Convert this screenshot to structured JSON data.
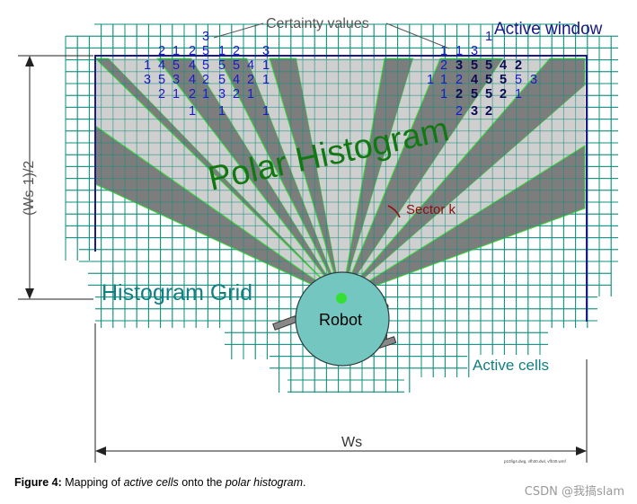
{
  "labels": {
    "certainty_values": "Certainty values",
    "active_window": "Active window",
    "polar_histogram": "Polar Histogram",
    "sector_k": "Sector k",
    "histogram_grid": "Histogram Grid",
    "robot": "Robot",
    "active_cells": "Active cells",
    "half_window": "(Ws-1)/2",
    "window_size": "Ws",
    "file_tag": "p10fig4.dwg, vfh30.dwl, vfh30.wmf"
  },
  "caption": {
    "label": "Figure 4:",
    "t1": " Mapping of ",
    "i1": "active cells",
    "t2": " onto the ",
    "i2": "polar histogram",
    "t3": "."
  },
  "watermark": "CSDN @我搞slam",
  "colors": {
    "grid": "#0f8f7c",
    "window": "#1a1a8a",
    "sector_light": "#cfcfcf",
    "sector_dark": "#7d7d7d",
    "sector_edge": "#33e033",
    "robot_fill": "#74c6c0",
    "polar_text": "#137813",
    "teal_text": "#107f82",
    "sector_k_text": "#8a0f0f",
    "certainty_blue": "#1a1acc",
    "certainty_bold": "#0b0b55"
  },
  "certainty_numbers": [
    {
      "v": "3",
      "b": false
    },
    {
      "v": "1",
      "b": false
    },
    {
      "v": "2",
      "b": false
    },
    {
      "v": "1",
      "b": false
    },
    {
      "v": "2",
      "b": false
    },
    {
      "v": "5",
      "b": false
    },
    {
      "v": "1",
      "b": false
    },
    {
      "v": "2",
      "b": false
    },
    {
      "v": "3",
      "b": false
    },
    {
      "v": "1",
      "b": false
    },
    {
      "v": "4",
      "b": false
    },
    {
      "v": "5",
      "b": false
    },
    {
      "v": "4",
      "b": false
    },
    {
      "v": "5",
      "b": false
    },
    {
      "v": "5",
      "b": false
    },
    {
      "v": "5",
      "b": false
    },
    {
      "v": "4",
      "b": false
    },
    {
      "v": "1",
      "b": false
    },
    {
      "v": "3",
      "b": false
    },
    {
      "v": "5",
      "b": false
    },
    {
      "v": "3",
      "b": false
    },
    {
      "v": "4",
      "b": false
    },
    {
      "v": "2",
      "b": false
    },
    {
      "v": "5",
      "b": false
    },
    {
      "v": "4",
      "b": false
    },
    {
      "v": "2",
      "b": false
    },
    {
      "v": "1",
      "b": false
    },
    {
      "v": "2",
      "b": false
    },
    {
      "v": "1",
      "b": false
    },
    {
      "v": "2",
      "b": false
    },
    {
      "v": "1",
      "b": false
    },
    {
      "v": "3",
      "b": false
    },
    {
      "v": "2",
      "b": false
    },
    {
      "v": "1",
      "b": false
    },
    {
      "v": "1",
      "b": false
    },
    {
      "v": "1",
      "b": false
    },
    {
      "v": "1",
      "b": false
    },
    {
      "v": "1",
      "b": false
    },
    {
      "v": "1",
      "b": false
    },
    {
      "v": "3",
      "b": false
    },
    {
      "v": "2",
      "b": false
    },
    {
      "v": "3",
      "b": true
    },
    {
      "v": "5",
      "b": true
    },
    {
      "v": "5",
      "b": true
    },
    {
      "v": "4",
      "b": true
    },
    {
      "v": "2",
      "b": true
    },
    {
      "v": "1",
      "b": false
    },
    {
      "v": "1",
      "b": false
    },
    {
      "v": "2",
      "b": false
    },
    {
      "v": "4",
      "b": true
    },
    {
      "v": "5",
      "b": true
    },
    {
      "v": "5",
      "b": true
    },
    {
      "v": "5",
      "b": false
    },
    {
      "v": "3",
      "b": false
    },
    {
      "v": "1",
      "b": false
    },
    {
      "v": "2",
      "b": true
    },
    {
      "v": "5",
      "b": true
    },
    {
      "v": "5",
      "b": true
    },
    {
      "v": "2",
      "b": true
    },
    {
      "v": "1",
      "b": false
    },
    {
      "v": "2",
      "b": false
    },
    {
      "v": "3",
      "b": true
    },
    {
      "v": "2",
      "b": true
    },
    {
      "v": "1",
      "b": false
    }
  ]
}
